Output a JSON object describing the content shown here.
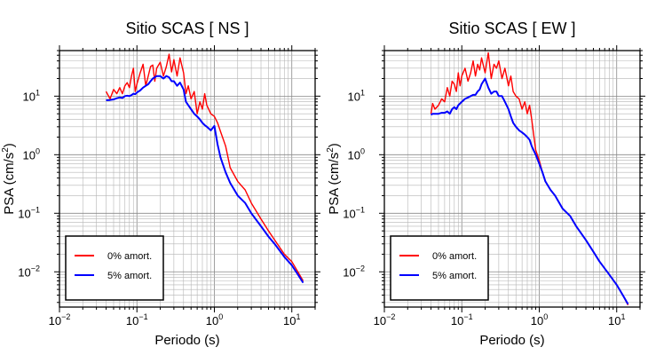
{
  "chart_data": [
    {
      "type": "line",
      "title": "Sitio SCAS [ NS ]",
      "xlabel": "Periodo (s)",
      "ylabel_base": "PSA (cm/s",
      "ylabel_sup": "2",
      "ylabel_tail": ")",
      "xscale": "log",
      "yscale": "log",
      "xlim": [
        0.01,
        20
      ],
      "ylim": [
        0.0025,
        60
      ],
      "xticks": [
        {
          "base": "10",
          "exp": "−2",
          "value": 0.01
        },
        {
          "base": "10",
          "exp": "−1",
          "value": 0.1
        },
        {
          "base": "10",
          "exp": "0",
          "value": 1
        },
        {
          "base": "10",
          "exp": "1",
          "value": 10
        }
      ],
      "yticks": [
        {
          "base": "10",
          "exp": "−2",
          "value": 0.01
        },
        {
          "base": "10",
          "exp": "−1",
          "value": 0.1
        },
        {
          "base": "10",
          "exp": "0",
          "value": 1
        },
        {
          "base": "10",
          "exp": "1",
          "value": 10
        }
      ],
      "grid": true,
      "legend_position": "bottom-left",
      "series": [
        {
          "name": "0% amort.",
          "color": "#ff0000",
          "x": [
            0.04,
            0.045,
            0.05,
            0.055,
            0.06,
            0.065,
            0.07,
            0.075,
            0.08,
            0.085,
            0.09,
            0.095,
            0.1,
            0.11,
            0.12,
            0.13,
            0.14,
            0.15,
            0.16,
            0.17,
            0.18,
            0.2,
            0.22,
            0.24,
            0.26,
            0.28,
            0.3,
            0.33,
            0.36,
            0.4,
            0.43,
            0.46,
            0.5,
            0.55,
            0.6,
            0.65,
            0.7,
            0.75,
            0.8,
            0.9,
            1.0,
            1.1,
            1.2,
            1.4,
            1.6,
            2.0,
            2.5,
            3.0,
            4.0,
            5.0,
            6.0,
            8.0,
            10.0,
            12.0,
            14.0
          ],
          "y": [
            12,
            9,
            13,
            11,
            14,
            11,
            15,
            17,
            14,
            22,
            30,
            12,
            16,
            25,
            35,
            15,
            22,
            32,
            34,
            18,
            30,
            38,
            22,
            32,
            52,
            26,
            42,
            22,
            45,
            25,
            11,
            15,
            9,
            12,
            5,
            8,
            6,
            11,
            7,
            5,
            4.5,
            3.5,
            2.5,
            1.4,
            0.6,
            0.35,
            0.25,
            0.15,
            0.08,
            0.05,
            0.035,
            0.02,
            0.015,
            0.01,
            0.007
          ]
        },
        {
          "name": "5% amort.",
          "color": "#0000ff",
          "x": [
            0.04,
            0.045,
            0.05,
            0.055,
            0.06,
            0.065,
            0.07,
            0.075,
            0.08,
            0.085,
            0.09,
            0.095,
            0.1,
            0.11,
            0.12,
            0.13,
            0.14,
            0.15,
            0.16,
            0.17,
            0.18,
            0.2,
            0.22,
            0.24,
            0.26,
            0.28,
            0.3,
            0.33,
            0.36,
            0.4,
            0.43,
            0.46,
            0.5,
            0.55,
            0.6,
            0.65,
            0.7,
            0.75,
            0.8,
            0.9,
            1.0,
            1.1,
            1.2,
            1.4,
            1.6,
            2.0,
            2.5,
            3.0,
            4.0,
            5.0,
            6.0,
            8.0,
            10.0,
            12.0,
            14.0
          ],
          "y": [
            8.5,
            8.6,
            8.8,
            9.2,
            9.5,
            9.3,
            10,
            10.2,
            10,
            10.4,
            11,
            10.8,
            11.5,
            12.5,
            14,
            15,
            16,
            18,
            20,
            21,
            22,
            22,
            20,
            22,
            21,
            18,
            18,
            15,
            17,
            13,
            8,
            7,
            6,
            5,
            4.5,
            4,
            3.5,
            3.2,
            3,
            2.6,
            3.1,
            1.5,
            0.9,
            0.5,
            0.33,
            0.2,
            0.15,
            0.1,
            0.06,
            0.04,
            0.03,
            0.018,
            0.013,
            0.009,
            0.0065
          ]
        }
      ]
    },
    {
      "type": "line",
      "title": "Sitio SCAS [ EW ]",
      "xlabel": "Periodo (s)",
      "ylabel_base": "PSA (cm/s",
      "ylabel_sup": "2",
      "ylabel_tail": ")",
      "xscale": "log",
      "yscale": "log",
      "xlim": [
        0.01,
        20
      ],
      "ylim": [
        0.0025,
        60
      ],
      "xticks": [
        {
          "base": "10",
          "exp": "−2",
          "value": 0.01
        },
        {
          "base": "10",
          "exp": "−1",
          "value": 0.1
        },
        {
          "base": "10",
          "exp": "0",
          "value": 1
        },
        {
          "base": "10",
          "exp": "1",
          "value": 10
        }
      ],
      "yticks": [
        {
          "base": "10",
          "exp": "−2",
          "value": 0.01
        },
        {
          "base": "10",
          "exp": "−1",
          "value": 0.1
        },
        {
          "base": "10",
          "exp": "0",
          "value": 1
        },
        {
          "base": "10",
          "exp": "1",
          "value": 10
        }
      ],
      "grid": true,
      "legend_position": "bottom-left",
      "series": [
        {
          "name": "0% amort.",
          "color": "#ff0000",
          "x": [
            0.04,
            0.042,
            0.045,
            0.05,
            0.055,
            0.06,
            0.065,
            0.07,
            0.075,
            0.08,
            0.085,
            0.09,
            0.095,
            0.1,
            0.11,
            0.12,
            0.13,
            0.14,
            0.15,
            0.16,
            0.17,
            0.18,
            0.2,
            0.22,
            0.24,
            0.26,
            0.28,
            0.3,
            0.33,
            0.36,
            0.4,
            0.43,
            0.46,
            0.5,
            0.55,
            0.6,
            0.65,
            0.7,
            0.75,
            0.8,
            0.9,
            1.0,
            1.1,
            1.2,
            1.4,
            1.6,
            2.0,
            2.5,
            3.0,
            4.0,
            5.0,
            6.0,
            8.0,
            10.0,
            12.0,
            14.0
          ],
          "y": [
            5,
            7.5,
            6,
            7,
            9,
            8,
            14,
            10,
            18,
            16,
            12,
            25,
            15,
            22,
            30,
            18,
            25,
            40,
            22,
            35,
            28,
            45,
            25,
            55,
            20,
            35,
            30,
            40,
            20,
            30,
            15,
            22,
            12,
            10,
            9,
            6,
            8,
            5,
            7,
            4,
            1.2,
            0.8,
            0.5,
            0.35,
            0.25,
            0.2,
            0.12,
            0.09,
            0.06,
            0.035,
            0.022,
            0.015,
            0.009,
            0.006,
            0.004,
            0.0027
          ]
        },
        {
          "name": "5% amort.",
          "color": "#0000ff",
          "x": [
            0.04,
            0.042,
            0.045,
            0.05,
            0.055,
            0.06,
            0.065,
            0.07,
            0.075,
            0.08,
            0.085,
            0.09,
            0.095,
            0.1,
            0.11,
            0.12,
            0.13,
            0.14,
            0.15,
            0.16,
            0.17,
            0.18,
            0.2,
            0.22,
            0.24,
            0.26,
            0.28,
            0.3,
            0.33,
            0.36,
            0.4,
            0.43,
            0.46,
            0.5,
            0.55,
            0.6,
            0.65,
            0.7,
            0.75,
            0.8,
            0.9,
            1.0,
            1.1,
            1.2,
            1.4,
            1.6,
            2.0,
            2.5,
            3.0,
            4.0,
            5.0,
            6.0,
            8.0,
            10.0,
            12.0,
            14.0
          ],
          "y": [
            4.8,
            5,
            5,
            5,
            5.2,
            5.2,
            5.5,
            5,
            6,
            6.5,
            6,
            7,
            7.5,
            8,
            9,
            9.5,
            10,
            10.5,
            10.5,
            12,
            13,
            16,
            20,
            14,
            11,
            12,
            12,
            10,
            10,
            8,
            6,
            4.5,
            3.5,
            3,
            2.6,
            2.4,
            2.2,
            2,
            1.8,
            1.4,
            1,
            0.7,
            0.5,
            0.35,
            0.25,
            0.2,
            0.12,
            0.09,
            0.06,
            0.035,
            0.022,
            0.015,
            0.009,
            0.006,
            0.004,
            0.0028
          ]
        }
      ]
    }
  ]
}
